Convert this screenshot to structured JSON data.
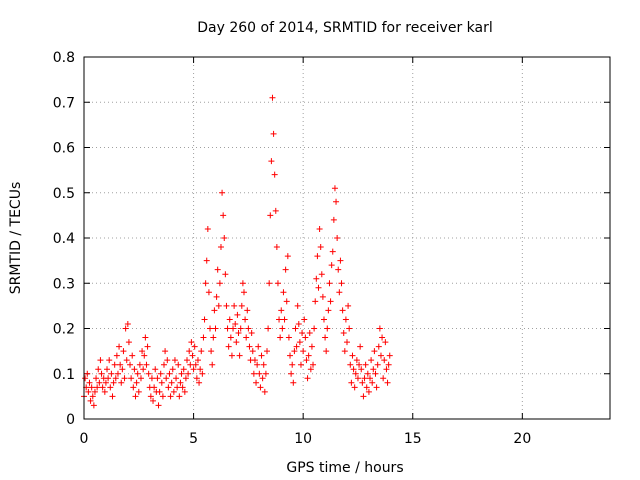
{
  "chart_data": {
    "type": "scatter",
    "title": "Day 260 of 2014, SRMTID for receiver karl",
    "xlabel": "GPS time / hours",
    "ylabel": "SRMTID / TECUs",
    "xlim": [
      0,
      24
    ],
    "ylim": [
      0,
      0.8
    ],
    "xticks": [
      0,
      5,
      10,
      15,
      20
    ],
    "yticks": [
      0,
      0.1,
      0.2,
      0.3,
      0.4,
      0.5,
      0.6,
      0.7,
      0.8
    ],
    "xtick_labels": [
      "0",
      "5",
      "10",
      "15",
      "20"
    ],
    "ytick_labels": [
      "0",
      "0.1",
      "0.2",
      "0.3",
      "0.4",
      "0.5",
      "0.6",
      "0.7",
      "0.8"
    ],
    "grid": true,
    "marker": "+",
    "color": "#ff0000",
    "series": [
      {
        "name": "SRMTID",
        "points": [
          [
            0.0,
            0.05
          ],
          [
            0.05,
            0.09
          ],
          [
            0.1,
            0.07
          ],
          [
            0.15,
            0.1
          ],
          [
            0.2,
            0.06
          ],
          [
            0.25,
            0.08
          ],
          [
            0.3,
            0.04
          ],
          [
            0.35,
            0.07
          ],
          [
            0.4,
            0.05
          ],
          [
            0.45,
            0.03
          ],
          [
            0.5,
            0.06
          ],
          [
            0.55,
            0.09
          ],
          [
            0.6,
            0.07
          ],
          [
            0.65,
            0.11
          ],
          [
            0.7,
            0.08
          ],
          [
            0.75,
            0.13
          ],
          [
            0.8,
            0.1
          ],
          [
            0.85,
            0.07
          ],
          [
            0.9,
            0.09
          ],
          [
            0.95,
            0.06
          ],
          [
            1.0,
            0.08
          ],
          [
            1.05,
            0.11
          ],
          [
            1.1,
            0.09
          ],
          [
            1.15,
            0.13
          ],
          [
            1.2,
            0.07
          ],
          [
            1.25,
            0.1
          ],
          [
            1.3,
            0.05
          ],
          [
            1.35,
            0.08
          ],
          [
            1.4,
            0.12
          ],
          [
            1.45,
            0.09
          ],
          [
            1.5,
            0.14
          ],
          [
            1.55,
            0.1
          ],
          [
            1.6,
            0.16
          ],
          [
            1.65,
            0.12
          ],
          [
            1.7,
            0.08
          ],
          [
            1.75,
            0.11
          ],
          [
            1.8,
            0.15
          ],
          [
            1.85,
            0.09
          ],
          [
            1.9,
            0.2
          ],
          [
            1.95,
            0.13
          ],
          [
            2.0,
            0.21
          ],
          [
            2.05,
            0.17
          ],
          [
            2.1,
            0.12
          ],
          [
            2.15,
            0.09
          ],
          [
            2.2,
            0.14
          ],
          [
            2.25,
            0.07
          ],
          [
            2.3,
            0.11
          ],
          [
            2.35,
            0.05
          ],
          [
            2.4,
            0.08
          ],
          [
            2.45,
            0.1
          ],
          [
            2.5,
            0.06
          ],
          [
            2.55,
            0.12
          ],
          [
            2.6,
            0.09
          ],
          [
            2.65,
            0.15
          ],
          [
            2.7,
            0.11
          ],
          [
            2.75,
            0.14
          ],
          [
            2.8,
            0.18
          ],
          [
            2.85,
            0.12
          ],
          [
            2.9,
            0.16
          ],
          [
            2.95,
            0.1
          ],
          [
            3.0,
            0.07
          ],
          [
            3.05,
            0.05
          ],
          [
            3.1,
            0.09
          ],
          [
            3.15,
            0.04
          ],
          [
            3.2,
            0.07
          ],
          [
            3.25,
            0.11
          ],
          [
            3.3,
            0.06
          ],
          [
            3.35,
            0.09
          ],
          [
            3.4,
            0.03
          ],
          [
            3.45,
            0.06
          ],
          [
            3.5,
            0.1
          ],
          [
            3.55,
            0.08
          ],
          [
            3.6,
            0.05
          ],
          [
            3.65,
            0.12
          ],
          [
            3.7,
            0.15
          ],
          [
            3.75,
            0.09
          ],
          [
            3.8,
            0.13
          ],
          [
            3.85,
            0.07
          ],
          [
            3.9,
            0.1
          ],
          [
            3.95,
            0.05
          ],
          [
            4.0,
            0.08
          ],
          [
            4.05,
            0.11
          ],
          [
            4.1,
            0.06
          ],
          [
            4.15,
            0.13
          ],
          [
            4.2,
            0.09
          ],
          [
            4.25,
            0.07
          ],
          [
            4.3,
            0.12
          ],
          [
            4.35,
            0.05
          ],
          [
            4.4,
            0.08
          ],
          [
            4.45,
            0.1
          ],
          [
            4.5,
            0.07
          ],
          [
            4.55,
            0.11
          ],
          [
            4.6,
            0.06
          ],
          [
            4.65,
            0.09
          ],
          [
            4.7,
            0.13
          ],
          [
            4.75,
            0.1
          ],
          [
            4.8,
            0.15
          ],
          [
            4.85,
            0.12
          ],
          [
            4.9,
            0.17
          ],
          [
            4.95,
            0.14
          ],
          [
            5.0,
            0.11
          ],
          [
            5.05,
            0.16
          ],
          [
            5.1,
            0.12
          ],
          [
            5.15,
            0.09
          ],
          [
            5.2,
            0.13
          ],
          [
            5.25,
            0.08
          ],
          [
            5.3,
            0.11
          ],
          [
            5.35,
            0.15
          ],
          [
            5.4,
            0.1
          ],
          [
            5.45,
            0.18
          ],
          [
            5.5,
            0.22
          ],
          [
            5.55,
            0.3
          ],
          [
            5.6,
            0.35
          ],
          [
            5.65,
            0.42
          ],
          [
            5.7,
            0.28
          ],
          [
            5.75,
            0.2
          ],
          [
            5.8,
            0.15
          ],
          [
            5.85,
            0.12
          ],
          [
            5.9,
            0.18
          ],
          [
            5.95,
            0.24
          ],
          [
            6.0,
            0.2
          ],
          [
            6.05,
            0.27
          ],
          [
            6.1,
            0.33
          ],
          [
            6.15,
            0.25
          ],
          [
            6.2,
            0.3
          ],
          [
            6.25,
            0.38
          ],
          [
            6.3,
            0.5
          ],
          [
            6.35,
            0.45
          ],
          [
            6.4,
            0.4
          ],
          [
            6.45,
            0.32
          ],
          [
            6.5,
            0.25
          ],
          [
            6.55,
            0.2
          ],
          [
            6.6,
            0.16
          ],
          [
            6.65,
            0.22
          ],
          [
            6.7,
            0.18
          ],
          [
            6.75,
            0.14
          ],
          [
            6.8,
            0.2
          ],
          [
            6.85,
            0.25
          ],
          [
            6.9,
            0.21
          ],
          [
            6.95,
            0.17
          ],
          [
            7.0,
            0.23
          ],
          [
            7.05,
            0.19
          ],
          [
            7.1,
            0.14
          ],
          [
            7.15,
            0.2
          ],
          [
            7.2,
            0.25
          ],
          [
            7.25,
            0.3
          ],
          [
            7.3,
            0.28
          ],
          [
            7.35,
            0.22
          ],
          [
            7.4,
            0.18
          ],
          [
            7.45,
            0.24
          ],
          [
            7.5,
            0.2
          ],
          [
            7.55,
            0.16
          ],
          [
            7.6,
            0.13
          ],
          [
            7.65,
            0.19
          ],
          [
            7.7,
            0.15
          ],
          [
            7.75,
            0.1
          ],
          [
            7.8,
            0.13
          ],
          [
            7.85,
            0.08
          ],
          [
            7.9,
            0.12
          ],
          [
            7.95,
            0.16
          ],
          [
            8.0,
            0.1
          ],
          [
            8.05,
            0.07
          ],
          [
            8.1,
            0.14
          ],
          [
            8.15,
            0.09
          ],
          [
            8.2,
            0.12
          ],
          [
            8.25,
            0.06
          ],
          [
            8.3,
            0.1
          ],
          [
            8.35,
            0.15
          ],
          [
            8.4,
            0.2
          ],
          [
            8.45,
            0.3
          ],
          [
            8.5,
            0.45
          ],
          [
            8.55,
            0.57
          ],
          [
            8.6,
            0.71
          ],
          [
            8.65,
            0.63
          ],
          [
            8.7,
            0.54
          ],
          [
            8.75,
            0.46
          ],
          [
            8.8,
            0.38
          ],
          [
            8.85,
            0.3
          ],
          [
            8.9,
            0.22
          ],
          [
            8.95,
            0.18
          ],
          [
            9.0,
            0.24
          ],
          [
            9.05,
            0.2
          ],
          [
            9.1,
            0.28
          ],
          [
            9.15,
            0.22
          ],
          [
            9.2,
            0.33
          ],
          [
            9.25,
            0.26
          ],
          [
            9.3,
            0.36
          ],
          [
            9.35,
            0.18
          ],
          [
            9.4,
            0.14
          ],
          [
            9.45,
            0.1
          ],
          [
            9.5,
            0.12
          ],
          [
            9.55,
            0.08
          ],
          [
            9.6,
            0.15
          ],
          [
            9.65,
            0.2
          ],
          [
            9.7,
            0.16
          ],
          [
            9.75,
            0.25
          ],
          [
            9.8,
            0.21
          ],
          [
            9.85,
            0.17
          ],
          [
            9.9,
            0.12
          ],
          [
            9.95,
            0.19
          ],
          [
            10.0,
            0.15
          ],
          [
            10.05,
            0.22
          ],
          [
            10.1,
            0.18
          ],
          [
            10.15,
            0.13
          ],
          [
            10.2,
            0.09
          ],
          [
            10.25,
            0.14
          ],
          [
            10.3,
            0.19
          ],
          [
            10.35,
            0.11
          ],
          [
            10.4,
            0.16
          ],
          [
            10.45,
            0.12
          ],
          [
            10.5,
            0.2
          ],
          [
            10.55,
            0.26
          ],
          [
            10.6,
            0.31
          ],
          [
            10.65,
            0.36
          ],
          [
            10.7,
            0.29
          ],
          [
            10.75,
            0.42
          ],
          [
            10.8,
            0.38
          ],
          [
            10.85,
            0.32
          ],
          [
            10.9,
            0.27
          ],
          [
            10.95,
            0.22
          ],
          [
            11.0,
            0.18
          ],
          [
            11.05,
            0.15
          ],
          [
            11.1,
            0.2
          ],
          [
            11.15,
            0.24
          ],
          [
            11.2,
            0.3
          ],
          [
            11.25,
            0.26
          ],
          [
            11.3,
            0.34
          ],
          [
            11.35,
            0.37
          ],
          [
            11.4,
            0.44
          ],
          [
            11.45,
            0.51
          ],
          [
            11.5,
            0.48
          ],
          [
            11.55,
            0.4
          ],
          [
            11.6,
            0.33
          ],
          [
            11.65,
            0.28
          ],
          [
            11.7,
            0.35
          ],
          [
            11.75,
            0.3
          ],
          [
            11.8,
            0.24
          ],
          [
            11.85,
            0.19
          ],
          [
            11.9,
            0.15
          ],
          [
            11.95,
            0.22
          ],
          [
            12.0,
            0.17
          ],
          [
            12.05,
            0.25
          ],
          [
            12.1,
            0.2
          ],
          [
            12.15,
            0.12
          ],
          [
            12.2,
            0.08
          ],
          [
            12.25,
            0.14
          ],
          [
            12.3,
            0.11
          ],
          [
            12.35,
            0.07
          ],
          [
            12.4,
            0.1
          ],
          [
            12.45,
            0.13
          ],
          [
            12.5,
            0.09
          ],
          [
            12.55,
            0.12
          ],
          [
            12.6,
            0.16
          ],
          [
            12.65,
            0.11
          ],
          [
            12.7,
            0.08
          ],
          [
            12.75,
            0.05
          ],
          [
            12.8,
            0.09
          ],
          [
            12.85,
            0.12
          ],
          [
            12.9,
            0.07
          ],
          [
            12.95,
            0.1
          ],
          [
            13.0,
            0.06
          ],
          [
            13.05,
            0.09
          ],
          [
            13.1,
            0.13
          ],
          [
            13.15,
            0.08
          ],
          [
            13.2,
            0.11
          ],
          [
            13.25,
            0.15
          ],
          [
            13.3,
            0.1
          ],
          [
            13.35,
            0.07
          ],
          [
            13.4,
            0.12
          ],
          [
            13.45,
            0.16
          ],
          [
            13.5,
            0.2
          ],
          [
            13.55,
            0.14
          ],
          [
            13.6,
            0.18
          ],
          [
            13.65,
            0.09
          ],
          [
            13.7,
            0.13
          ],
          [
            13.75,
            0.17
          ],
          [
            13.8,
            0.11
          ],
          [
            13.85,
            0.08
          ],
          [
            13.9,
            0.12
          ],
          [
            13.95,
            0.14
          ]
        ]
      }
    ]
  }
}
